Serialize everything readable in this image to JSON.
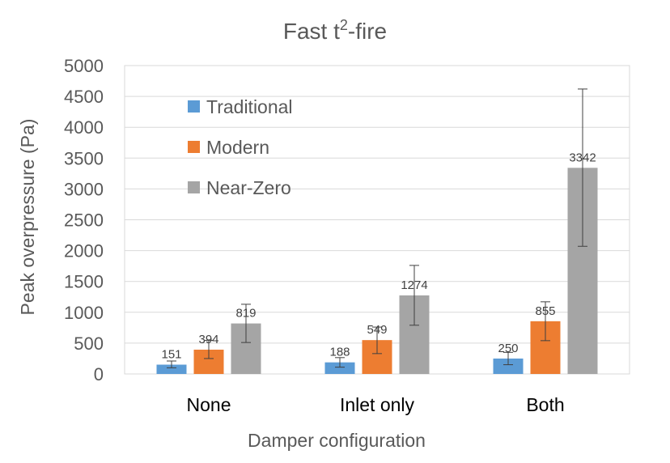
{
  "chart_data": {
    "type": "bar",
    "title": "Fast t",
    "title_superscript": "2",
    "title_suffix": "-fire",
    "xlabel": "Damper configuration",
    "ylabel": "Peak overpressure (Pa)",
    "categories": [
      "None",
      "Inlet only",
      "Both"
    ],
    "ylim": [
      0,
      5000
    ],
    "yticks": [
      0,
      500,
      1000,
      1500,
      2000,
      2500,
      3000,
      3500,
      4000,
      4500,
      5000
    ],
    "grid": true,
    "legend_position": "top-left",
    "series": [
      {
        "name": "Traditional",
        "color": "#5B9BD5",
        "values": [
          151,
          188,
          250
        ],
        "error_low": [
          100,
          110,
          150
        ],
        "error_high": [
          210,
          265,
          350
        ]
      },
      {
        "name": "Modern",
        "color": "#ED7D31",
        "values": [
          394,
          549,
          855
        ],
        "error_low": [
          250,
          330,
          540
        ],
        "error_high": [
          545,
          760,
          1170
        ]
      },
      {
        "name": "Near-Zero",
        "color": "#A5A5A5",
        "values": [
          819,
          1274,
          3342
        ],
        "error_low": [
          510,
          790,
          2070
        ],
        "error_high": [
          1130,
          1760,
          4620
        ]
      }
    ]
  }
}
